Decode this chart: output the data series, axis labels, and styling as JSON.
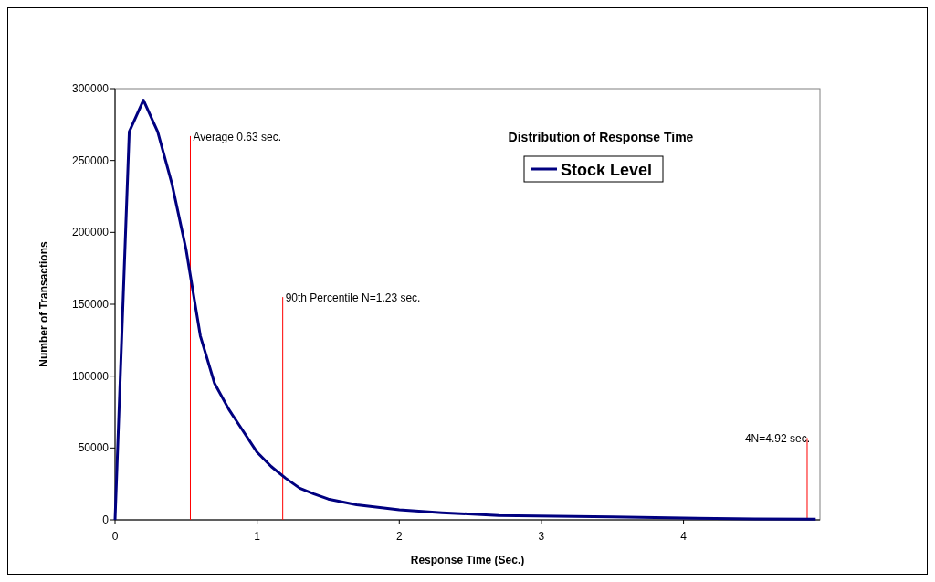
{
  "chart_data": {
    "type": "line",
    "title": "Distribution of Response Time",
    "xlabel": "Response Time (Sec.)",
    "ylabel": "Number of Transactions",
    "x": [
      0,
      0.1,
      0.2,
      0.3,
      0.4,
      0.5,
      0.6,
      0.7,
      0.8,
      0.9,
      1.0,
      1.1,
      1.2,
      1.3,
      1.4,
      1.5,
      1.7,
      2.0,
      2.3,
      2.7,
      3.1,
      3.5,
      4.0,
      4.5,
      4.93
    ],
    "series": [
      {
        "name": "Stock Level",
        "color": "#000080",
        "values": [
          0,
          270000,
          292000,
          270000,
          234000,
          188000,
          128000,
          95000,
          77000,
          62000,
          47000,
          37000,
          29000,
          22000,
          18000,
          14500,
          10500,
          7000,
          5000,
          3000,
          2500,
          2000,
          1200,
          700,
          500
        ]
      }
    ],
    "xlim": [
      0,
      4.96
    ],
    "xticks": [
      0,
      1,
      2,
      3,
      4
    ],
    "ylim": [
      0,
      300000
    ],
    "yticks": [
      0,
      50000,
      100000,
      150000,
      200000,
      250000,
      300000
    ],
    "grid": false,
    "legend": "top right",
    "marker": "none",
    "line_style": "solid",
    "ref_lines": [
      {
        "axis": "x",
        "value": 0.53,
        "color": "#ff0000"
      },
      {
        "axis": "x",
        "value": 1.18,
        "color": "#ff0000"
      },
      {
        "axis": "x",
        "value": 4.87,
        "color": "#ff0000"
      }
    ],
    "annotations": [
      {
        "text": "Average 0.63 sec.",
        "x": 0.53,
        "y": 267000
      },
      {
        "text": "90th Percentile N=1.23 sec.",
        "x": 1.18,
        "y": 155000
      },
      {
        "text": "4N=4.92 sec.",
        "x": 4.87,
        "y": 57000
      }
    ]
  }
}
